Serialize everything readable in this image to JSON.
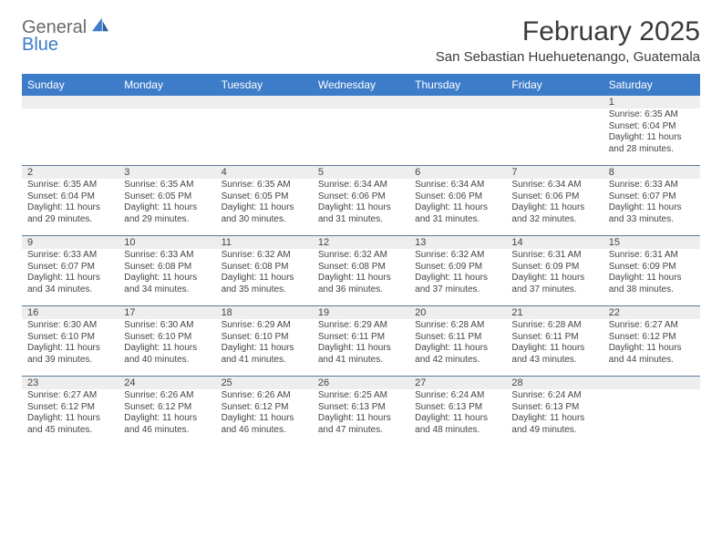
{
  "logo": {
    "text1": "General",
    "text2": "Blue",
    "color_gray": "#6b6b6b",
    "color_blue": "#3d7cc9"
  },
  "header": {
    "month_title": "February 2025",
    "location": "San Sebastian Huehuetenango, Guatemala"
  },
  "style": {
    "header_bar_bg": "#3d7cc9",
    "header_bar_fg": "#ffffff",
    "band_bg": "#eeeeee",
    "week_divider": "#5c7a99",
    "page_bg": "#ffffff",
    "text_color": "#444444",
    "title_fontsize": 30,
    "location_fontsize": 15,
    "weekday_fontsize": 12,
    "cell_fontsize": 10
  },
  "weekdays": [
    "Sunday",
    "Monday",
    "Tuesday",
    "Wednesday",
    "Thursday",
    "Friday",
    "Saturday"
  ],
  "weeks": [
    [
      null,
      null,
      null,
      null,
      null,
      null,
      {
        "n": "1",
        "sr": "Sunrise: 6:35 AM",
        "ss": "Sunset: 6:04 PM",
        "d1": "Daylight: 11 hours",
        "d2": "and 28 minutes."
      }
    ],
    [
      {
        "n": "2",
        "sr": "Sunrise: 6:35 AM",
        "ss": "Sunset: 6:04 PM",
        "d1": "Daylight: 11 hours",
        "d2": "and 29 minutes."
      },
      {
        "n": "3",
        "sr": "Sunrise: 6:35 AM",
        "ss": "Sunset: 6:05 PM",
        "d1": "Daylight: 11 hours",
        "d2": "and 29 minutes."
      },
      {
        "n": "4",
        "sr": "Sunrise: 6:35 AM",
        "ss": "Sunset: 6:05 PM",
        "d1": "Daylight: 11 hours",
        "d2": "and 30 minutes."
      },
      {
        "n": "5",
        "sr": "Sunrise: 6:34 AM",
        "ss": "Sunset: 6:06 PM",
        "d1": "Daylight: 11 hours",
        "d2": "and 31 minutes."
      },
      {
        "n": "6",
        "sr": "Sunrise: 6:34 AM",
        "ss": "Sunset: 6:06 PM",
        "d1": "Daylight: 11 hours",
        "d2": "and 31 minutes."
      },
      {
        "n": "7",
        "sr": "Sunrise: 6:34 AM",
        "ss": "Sunset: 6:06 PM",
        "d1": "Daylight: 11 hours",
        "d2": "and 32 minutes."
      },
      {
        "n": "8",
        "sr": "Sunrise: 6:33 AM",
        "ss": "Sunset: 6:07 PM",
        "d1": "Daylight: 11 hours",
        "d2": "and 33 minutes."
      }
    ],
    [
      {
        "n": "9",
        "sr": "Sunrise: 6:33 AM",
        "ss": "Sunset: 6:07 PM",
        "d1": "Daylight: 11 hours",
        "d2": "and 34 minutes."
      },
      {
        "n": "10",
        "sr": "Sunrise: 6:33 AM",
        "ss": "Sunset: 6:08 PM",
        "d1": "Daylight: 11 hours",
        "d2": "and 34 minutes."
      },
      {
        "n": "11",
        "sr": "Sunrise: 6:32 AM",
        "ss": "Sunset: 6:08 PM",
        "d1": "Daylight: 11 hours",
        "d2": "and 35 minutes."
      },
      {
        "n": "12",
        "sr": "Sunrise: 6:32 AM",
        "ss": "Sunset: 6:08 PM",
        "d1": "Daylight: 11 hours",
        "d2": "and 36 minutes."
      },
      {
        "n": "13",
        "sr": "Sunrise: 6:32 AM",
        "ss": "Sunset: 6:09 PM",
        "d1": "Daylight: 11 hours",
        "d2": "and 37 minutes."
      },
      {
        "n": "14",
        "sr": "Sunrise: 6:31 AM",
        "ss": "Sunset: 6:09 PM",
        "d1": "Daylight: 11 hours",
        "d2": "and 37 minutes."
      },
      {
        "n": "15",
        "sr": "Sunrise: 6:31 AM",
        "ss": "Sunset: 6:09 PM",
        "d1": "Daylight: 11 hours",
        "d2": "and 38 minutes."
      }
    ],
    [
      {
        "n": "16",
        "sr": "Sunrise: 6:30 AM",
        "ss": "Sunset: 6:10 PM",
        "d1": "Daylight: 11 hours",
        "d2": "and 39 minutes."
      },
      {
        "n": "17",
        "sr": "Sunrise: 6:30 AM",
        "ss": "Sunset: 6:10 PM",
        "d1": "Daylight: 11 hours",
        "d2": "and 40 minutes."
      },
      {
        "n": "18",
        "sr": "Sunrise: 6:29 AM",
        "ss": "Sunset: 6:10 PM",
        "d1": "Daylight: 11 hours",
        "d2": "and 41 minutes."
      },
      {
        "n": "19",
        "sr": "Sunrise: 6:29 AM",
        "ss": "Sunset: 6:11 PM",
        "d1": "Daylight: 11 hours",
        "d2": "and 41 minutes."
      },
      {
        "n": "20",
        "sr": "Sunrise: 6:28 AM",
        "ss": "Sunset: 6:11 PM",
        "d1": "Daylight: 11 hours",
        "d2": "and 42 minutes."
      },
      {
        "n": "21",
        "sr": "Sunrise: 6:28 AM",
        "ss": "Sunset: 6:11 PM",
        "d1": "Daylight: 11 hours",
        "d2": "and 43 minutes."
      },
      {
        "n": "22",
        "sr": "Sunrise: 6:27 AM",
        "ss": "Sunset: 6:12 PM",
        "d1": "Daylight: 11 hours",
        "d2": "and 44 minutes."
      }
    ],
    [
      {
        "n": "23",
        "sr": "Sunrise: 6:27 AM",
        "ss": "Sunset: 6:12 PM",
        "d1": "Daylight: 11 hours",
        "d2": "and 45 minutes."
      },
      {
        "n": "24",
        "sr": "Sunrise: 6:26 AM",
        "ss": "Sunset: 6:12 PM",
        "d1": "Daylight: 11 hours",
        "d2": "and 46 minutes."
      },
      {
        "n": "25",
        "sr": "Sunrise: 6:26 AM",
        "ss": "Sunset: 6:12 PM",
        "d1": "Daylight: 11 hours",
        "d2": "and 46 minutes."
      },
      {
        "n": "26",
        "sr": "Sunrise: 6:25 AM",
        "ss": "Sunset: 6:13 PM",
        "d1": "Daylight: 11 hours",
        "d2": "and 47 minutes."
      },
      {
        "n": "27",
        "sr": "Sunrise: 6:24 AM",
        "ss": "Sunset: 6:13 PM",
        "d1": "Daylight: 11 hours",
        "d2": "and 48 minutes."
      },
      {
        "n": "28",
        "sr": "Sunrise: 6:24 AM",
        "ss": "Sunset: 6:13 PM",
        "d1": "Daylight: 11 hours",
        "d2": "and 49 minutes."
      },
      null
    ]
  ]
}
